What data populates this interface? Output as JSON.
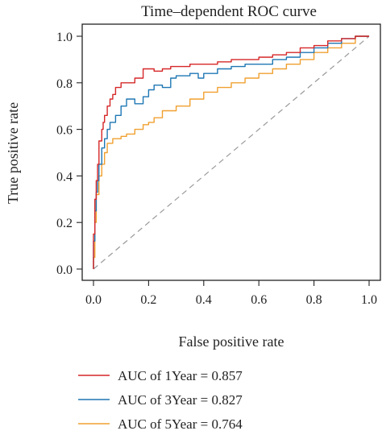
{
  "chart_data": {
    "type": "line",
    "title": "Time–dependent ROC curve",
    "xlabel": "False positive rate",
    "ylabel": "True positive rate",
    "xlim": [
      0,
      1
    ],
    "ylim": [
      0,
      1
    ],
    "xticks": [
      "0.0",
      "0.2",
      "0.4",
      "0.6",
      "0.8",
      "1.0"
    ],
    "yticks": [
      "0.0",
      "0.2",
      "0.4",
      "0.6",
      "0.8",
      "1.0"
    ],
    "grid": false,
    "legend_position": "bottom",
    "reference_line": {
      "x": [
        0,
        1
      ],
      "y": [
        0,
        1
      ],
      "color": "#a0a0a0",
      "style": "dashed"
    },
    "series": [
      {
        "name": "AUC of 1Year = 0.857",
        "color": "#d62728",
        "x": [
          0,
          0.005,
          0.01,
          0.015,
          0.02,
          0.03,
          0.035,
          0.04,
          0.05,
          0.06,
          0.07,
          0.08,
          0.1,
          0.12,
          0.15,
          0.18,
          0.2,
          0.22,
          0.25,
          0.28,
          0.3,
          0.35,
          0.4,
          0.45,
          0.5,
          0.55,
          0.6,
          0.65,
          0.7,
          0.75,
          0.8,
          0.85,
          0.9,
          0.95,
          1.0
        ],
        "y": [
          0,
          0.15,
          0.3,
          0.38,
          0.45,
          0.55,
          0.6,
          0.63,
          0.66,
          0.7,
          0.73,
          0.75,
          0.78,
          0.8,
          0.8,
          0.82,
          0.86,
          0.86,
          0.85,
          0.86,
          0.87,
          0.87,
          0.88,
          0.88,
          0.89,
          0.9,
          0.9,
          0.91,
          0.92,
          0.93,
          0.95,
          0.96,
          0.98,
          0.99,
          1.0
        ]
      },
      {
        "name": "AUC of 3Year = 0.827",
        "color": "#1f77b4",
        "x": [
          0,
          0.005,
          0.01,
          0.015,
          0.02,
          0.03,
          0.04,
          0.05,
          0.06,
          0.08,
          0.1,
          0.12,
          0.15,
          0.18,
          0.2,
          0.22,
          0.25,
          0.28,
          0.3,
          0.35,
          0.38,
          0.4,
          0.45,
          0.5,
          0.55,
          0.6,
          0.65,
          0.7,
          0.75,
          0.8,
          0.85,
          0.9,
          0.95,
          1.0
        ],
        "y": [
          0,
          0.12,
          0.25,
          0.33,
          0.38,
          0.45,
          0.52,
          0.56,
          0.6,
          0.63,
          0.66,
          0.7,
          0.73,
          0.71,
          0.74,
          0.77,
          0.79,
          0.78,
          0.82,
          0.83,
          0.84,
          0.82,
          0.84,
          0.86,
          0.87,
          0.88,
          0.88,
          0.9,
          0.91,
          0.93,
          0.95,
          0.97,
          0.99,
          1.0
        ]
      },
      {
        "name": "AUC of 5Year = 0.764",
        "color": "#f0a030",
        "x": [
          0,
          0.005,
          0.01,
          0.02,
          0.03,
          0.04,
          0.05,
          0.07,
          0.1,
          0.12,
          0.15,
          0.18,
          0.2,
          0.22,
          0.25,
          0.3,
          0.35,
          0.4,
          0.45,
          0.5,
          0.55,
          0.6,
          0.65,
          0.7,
          0.75,
          0.8,
          0.85,
          0.9,
          0.95,
          1.0
        ],
        "y": [
          0,
          0.05,
          0.2,
          0.32,
          0.4,
          0.45,
          0.5,
          0.54,
          0.56,
          0.57,
          0.58,
          0.6,
          0.62,
          0.63,
          0.65,
          0.68,
          0.7,
          0.73,
          0.76,
          0.78,
          0.8,
          0.82,
          0.84,
          0.86,
          0.88,
          0.9,
          0.93,
          0.95,
          0.97,
          1.0
        ]
      }
    ]
  }
}
